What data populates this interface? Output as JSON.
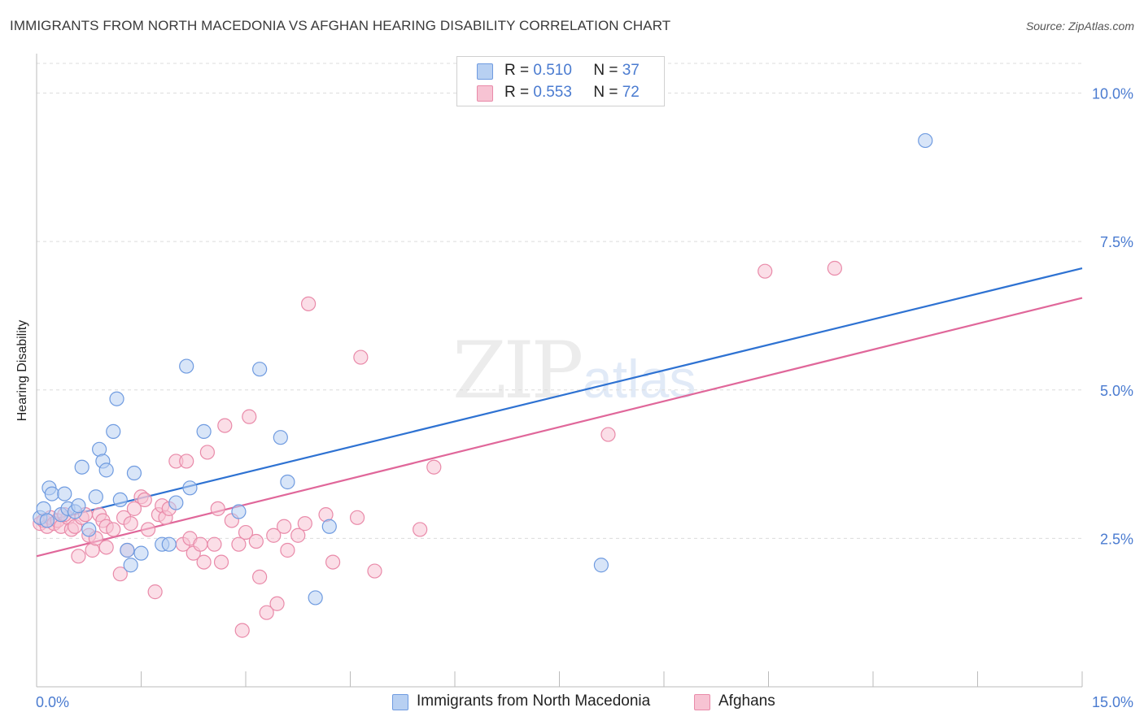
{
  "header": {
    "title": "IMMIGRANTS FROM NORTH MACEDONIA VS AFGHAN HEARING DISABILITY CORRELATION CHART",
    "source": "Source: ZipAtlas.com"
  },
  "watermark": {
    "zip": "ZIP",
    "atlas": "atlas"
  },
  "legend_top": [
    {
      "r_label": "R =",
      "r_value": "0.510",
      "n_label": "N =",
      "n_value": "37"
    },
    {
      "r_label": "R =",
      "r_value": "0.553",
      "n_label": "N =",
      "n_value": "72"
    }
  ],
  "legend_bottom": [
    {
      "label": "Immigrants from North Macedonia"
    },
    {
      "label": "Afghans"
    }
  ],
  "colors": {
    "blue_fill": "#b8d0f2",
    "blue_stroke": "#6f9be0",
    "blue_line": "#2e72d2",
    "pink_fill": "#f7c3d3",
    "pink_stroke": "#e98aa9",
    "pink_line": "#e0679a",
    "tick_text": "#4a7bd0",
    "grid": "#dcdcdc"
  },
  "chart_data": {
    "type": "scatter",
    "title": "IMMIGRANTS FROM NORTH MACEDONIA VS AFGHAN HEARING DISABILITY CORRELATION CHART",
    "xlabel": "",
    "ylabel": "Hearing Disability",
    "xlim": [
      0,
      15
    ],
    "ylim": [
      0,
      10.5
    ],
    "x_tick_labels": [
      "0.0%",
      "15.0%"
    ],
    "y_ticks": [
      2.5,
      5.0,
      7.5,
      10.0
    ],
    "y_tick_labels": [
      "2.5%",
      "5.0%",
      "7.5%",
      "10.0%"
    ],
    "grid": true,
    "legend_position": "top-center",
    "series": [
      {
        "name": "Immigrants from North Macedonia",
        "color": "#6f9be0",
        "R": 0.51,
        "N": 37,
        "trend": {
          "x": [
            0,
            15
          ],
          "y": [
            2.75,
            7.05
          ]
        },
        "points": [
          [
            0.05,
            2.85
          ],
          [
            0.1,
            3.0
          ],
          [
            0.15,
            2.8
          ],
          [
            0.18,
            3.35
          ],
          [
            0.22,
            3.25
          ],
          [
            0.35,
            2.9
          ],
          [
            0.4,
            3.25
          ],
          [
            0.45,
            3.0
          ],
          [
            0.55,
            2.95
          ],
          [
            0.6,
            3.05
          ],
          [
            0.65,
            3.7
          ],
          [
            0.75,
            2.65
          ],
          [
            0.85,
            3.2
          ],
          [
            0.9,
            4.0
          ],
          [
            0.95,
            3.8
          ],
          [
            1.0,
            3.65
          ],
          [
            1.1,
            4.3
          ],
          [
            1.15,
            4.85
          ],
          [
            1.2,
            3.15
          ],
          [
            1.3,
            2.3
          ],
          [
            1.35,
            2.05
          ],
          [
            1.4,
            3.6
          ],
          [
            1.5,
            2.25
          ],
          [
            1.8,
            2.4
          ],
          [
            1.9,
            2.4
          ],
          [
            2.0,
            3.1
          ],
          [
            2.15,
            5.4
          ],
          [
            2.2,
            3.35
          ],
          [
            2.4,
            4.3
          ],
          [
            2.9,
            2.95
          ],
          [
            3.2,
            5.35
          ],
          [
            3.5,
            4.2
          ],
          [
            3.6,
            3.45
          ],
          [
            4.0,
            1.5
          ],
          [
            4.2,
            2.7
          ],
          [
            8.1,
            2.05
          ],
          [
            12.75,
            9.2
          ]
        ]
      },
      {
        "name": "Afghans",
        "color": "#e98aa9",
        "R": 0.553,
        "N": 72,
        "trend": {
          "x": [
            0,
            15
          ],
          "y": [
            2.2,
            6.55
          ]
        },
        "points": [
          [
            0.05,
            2.75
          ],
          [
            0.1,
            2.8
          ],
          [
            0.15,
            2.7
          ],
          [
            0.2,
            2.85
          ],
          [
            0.25,
            2.75
          ],
          [
            0.3,
            2.8
          ],
          [
            0.35,
            2.7
          ],
          [
            0.45,
            2.85
          ],
          [
            0.5,
            2.65
          ],
          [
            0.55,
            2.7
          ],
          [
            0.6,
            2.2
          ],
          [
            0.65,
            2.85
          ],
          [
            0.7,
            2.9
          ],
          [
            0.75,
            2.55
          ],
          [
            0.8,
            2.3
          ],
          [
            0.85,
            2.5
          ],
          [
            0.9,
            2.9
          ],
          [
            0.95,
            2.8
          ],
          [
            1.0,
            2.7
          ],
          [
            1.1,
            2.65
          ],
          [
            1.2,
            1.9
          ],
          [
            1.25,
            2.85
          ],
          [
            1.3,
            2.3
          ],
          [
            1.35,
            2.75
          ],
          [
            1.4,
            3.0
          ],
          [
            1.5,
            3.2
          ],
          [
            1.55,
            3.15
          ],
          [
            1.6,
            2.65
          ],
          [
            1.7,
            1.6
          ],
          [
            1.75,
            2.9
          ],
          [
            1.8,
            3.05
          ],
          [
            1.85,
            2.85
          ],
          [
            1.9,
            3.0
          ],
          [
            2.0,
            3.8
          ],
          [
            2.1,
            2.4
          ],
          [
            2.15,
            3.8
          ],
          [
            2.2,
            2.5
          ],
          [
            2.25,
            2.25
          ],
          [
            2.35,
            2.4
          ],
          [
            2.4,
            2.1
          ],
          [
            2.45,
            3.95
          ],
          [
            2.55,
            2.4
          ],
          [
            2.6,
            3.0
          ],
          [
            2.65,
            2.1
          ],
          [
            2.7,
            4.4
          ],
          [
            2.8,
            2.8
          ],
          [
            2.9,
            2.4
          ],
          [
            2.95,
            0.95
          ],
          [
            3.0,
            2.6
          ],
          [
            3.05,
            4.55
          ],
          [
            3.15,
            2.45
          ],
          [
            3.2,
            1.85
          ],
          [
            3.3,
            1.25
          ],
          [
            3.4,
            2.55
          ],
          [
            3.45,
            1.4
          ],
          [
            3.55,
            2.7
          ],
          [
            3.6,
            2.3
          ],
          [
            3.75,
            2.55
          ],
          [
            3.85,
            2.75
          ],
          [
            3.9,
            6.45
          ],
          [
            4.15,
            2.9
          ],
          [
            4.25,
            2.1
          ],
          [
            4.6,
            2.85
          ],
          [
            4.65,
            5.55
          ],
          [
            4.85,
            1.95
          ],
          [
            5.5,
            2.65
          ],
          [
            5.7,
            3.7
          ],
          [
            8.2,
            4.25
          ],
          [
            10.45,
            7.0
          ],
          [
            11.45,
            7.05
          ],
          [
            1.0,
            2.35
          ],
          [
            0.4,
            2.9
          ]
        ]
      }
    ]
  }
}
